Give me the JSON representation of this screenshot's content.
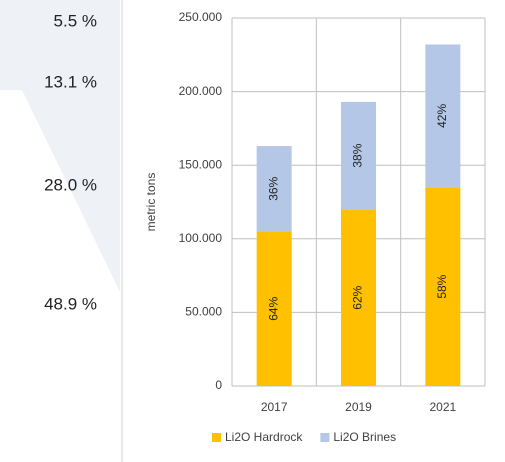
{
  "side_labels": [
    "5.5 %",
    "13.1 %",
    "28.0 %",
    "48.9 %"
  ],
  "chart_data": {
    "type": "stacked_bar",
    "y_label": "metric tons",
    "categories": [
      "2017",
      "2019",
      "2021"
    ],
    "series": [
      {
        "name": "Li2O Hardrock",
        "color": "#ffc000",
        "values": [
          105000,
          120000,
          135000
        ],
        "share_labels": [
          "64%",
          "62%",
          "58%"
        ]
      },
      {
        "name": "Li2O Brines",
        "color": "#b4c7e7",
        "values": [
          58000,
          73000,
          97000
        ],
        "share_labels": [
          "36%",
          "38%",
          "42%"
        ]
      }
    ],
    "ylim": [
      0,
      250000
    ],
    "yticks": [
      0,
      {
        "value": 50000,
        "label": "50.000"
      },
      {
        "value": 100000,
        "label": "100.000"
      },
      {
        "value": 150000,
        "label": "150.000"
      },
      {
        "value": 200000,
        "label": "200.000"
      },
      {
        "value": 250000,
        "label": "250.000"
      }
    ],
    "grid": true,
    "legend": "bottom"
  }
}
